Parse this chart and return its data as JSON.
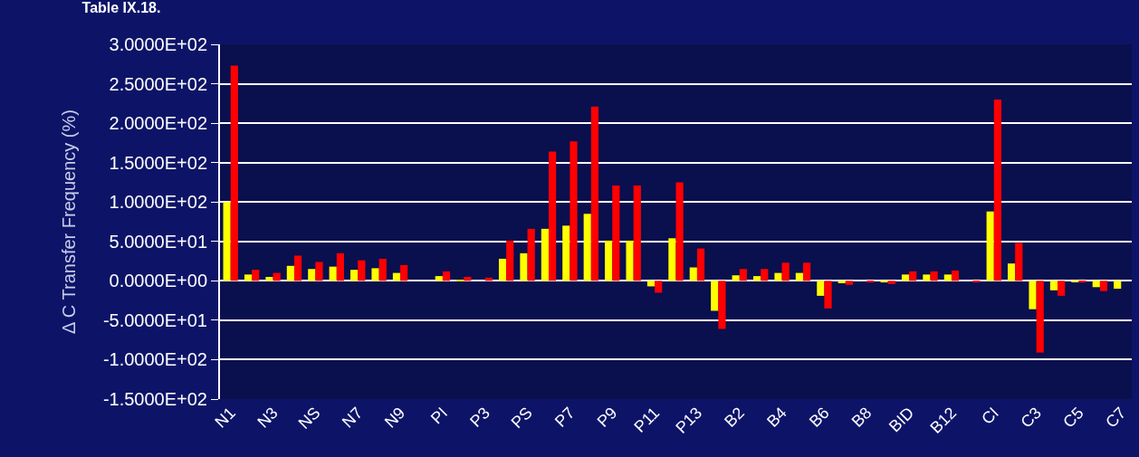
{
  "chart_data": {
    "type": "bar",
    "title": "Table IX.18.",
    "ylabel": "Δ C Transfer Frequency (%)",
    "categories": [
      "N1",
      null,
      "N3",
      null,
      "NS",
      null,
      "N7",
      null,
      "N9",
      null,
      "PI",
      null,
      "P3",
      null,
      "PS",
      null,
      "P7",
      null,
      "P9",
      null,
      "P11",
      null,
      "P13",
      null,
      "B2",
      null,
      "B4",
      null,
      "B6",
      null,
      "B8",
      null,
      "BID",
      null,
      "B12",
      null,
      "CI",
      null,
      "C3",
      null,
      "C5",
      null,
      "C7"
    ],
    "series": [
      {
        "color": "#ffff00",
        "values": [
          100,
          8,
          5,
          19,
          15,
          18,
          14,
          16,
          10,
          0,
          6,
          1,
          0,
          28,
          35,
          66,
          70,
          85,
          51,
          51,
          -7,
          54,
          17,
          -38,
          7,
          6,
          10,
          10,
          -19,
          -3,
          0,
          -2,
          8,
          8,
          8,
          0,
          88,
          22,
          -36,
          -12,
          -1,
          -8,
          -10
        ]
      },
      {
        "color": "#ff0000",
        "values": [
          273,
          14,
          10,
          32,
          24,
          35,
          26,
          28,
          20,
          0,
          12,
          5,
          4,
          51,
          66,
          164,
          177,
          221,
          121,
          121,
          -15,
          125,
          41,
          -61,
          15,
          15,
          23,
          23,
          -35,
          -5,
          -2,
          -4,
          12,
          12,
          13,
          -1,
          230,
          48,
          -91,
          -19,
          -2,
          -13,
          null
        ]
      }
    ],
    "ylim": [
      -150,
      300
    ],
    "yticks": [
      {
        "value": -150,
        "label": "-1.5000E+02"
      },
      {
        "value": -100,
        "label": "-1.0000E+02"
      },
      {
        "value": -50,
        "label": "-5.0000E+01"
      },
      {
        "value": 0,
        "label": "0.0000E+00"
      },
      {
        "value": 50,
        "label": "5.0000E+01"
      },
      {
        "value": 100,
        "label": "1.0000E+02"
      },
      {
        "value": 150,
        "label": "1.5000E+02"
      },
      {
        "value": 200,
        "label": "2.0000E+02"
      },
      {
        "value": 250,
        "label": "2.5000E+02"
      },
      {
        "value": 300,
        "label": "3.0000E+02"
      }
    ],
    "grid": "y"
  }
}
